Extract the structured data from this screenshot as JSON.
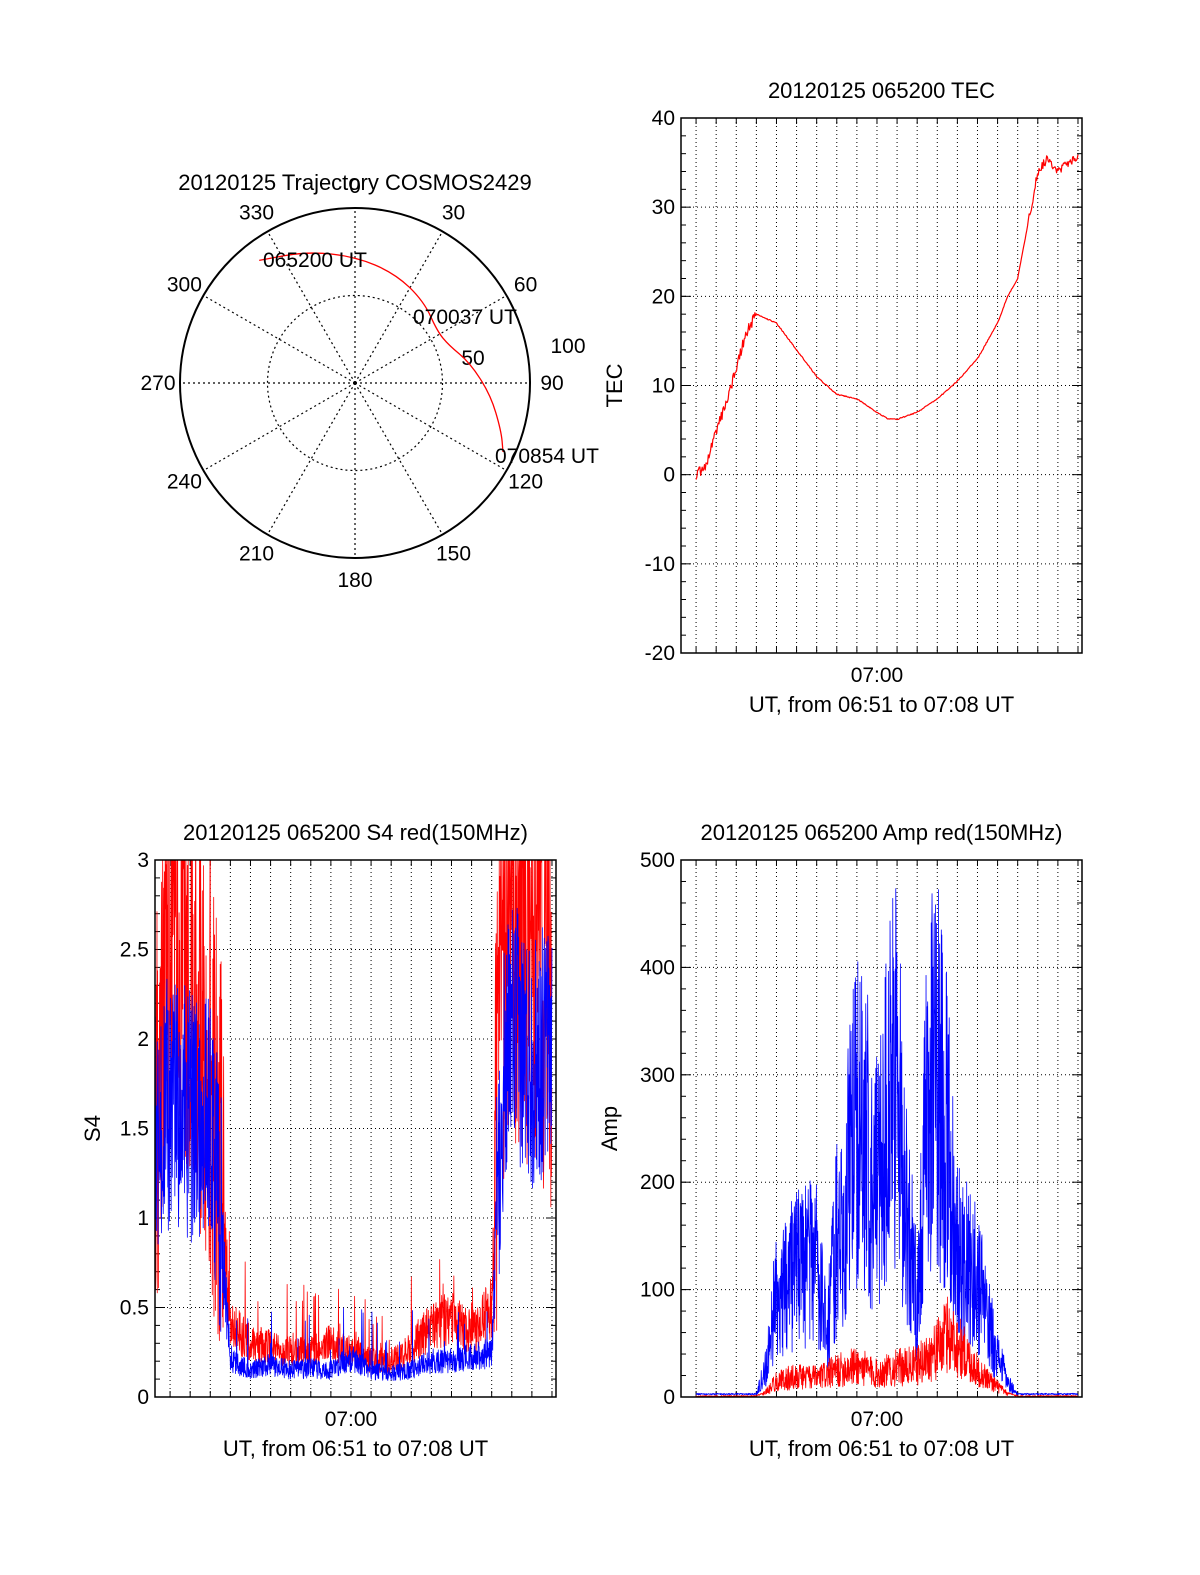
{
  "chart_data": [
    {
      "type": "polar",
      "title": "20120125 Trajectory COSMOS2429",
      "angle_labels": [
        "0",
        "30",
        "60",
        "90",
        "120",
        "150",
        "180",
        "210",
        "240",
        "270",
        "300",
        "330"
      ],
      "radial_labels": [
        "50",
        "100"
      ],
      "grid": true,
      "trajectory": {
        "color": "#ff0000",
        "points": [
          {
            "az": 322,
            "el": 10
          },
          {
            "az": 340,
            "el": 18
          },
          {
            "az": 0,
            "el": 25
          },
          {
            "az": 20,
            "el": 30
          },
          {
            "az": 40,
            "el": 35
          },
          {
            "az": 58,
            "el": 40
          },
          {
            "az": 68,
            "el": 38
          },
          {
            "az": 80,
            "el": 30
          },
          {
            "az": 95,
            "el": 20
          },
          {
            "az": 108,
            "el": 11
          },
          {
            "az": 115,
            "el": 6
          }
        ]
      },
      "annotations": [
        {
          "text": "065200 UT",
          "az": 322,
          "el": 10
        },
        {
          "text": "070037 UT",
          "az": 65,
          "el": 38
        },
        {
          "text": "070854 UT",
          "az": 115,
          "el": 6
        }
      ]
    },
    {
      "type": "line",
      "title": "20120125 065200 TEC",
      "xlabel": "UT, from 06:51 to 07:08 UT",
      "ylabel": "TEC",
      "xlim": [
        "06:50:15",
        "07:10:12"
      ],
      "ylim": [
        -20,
        40
      ],
      "yticks": [
        "-20",
        "-10",
        "0",
        "10",
        "20",
        "30",
        "40"
      ],
      "xtick_label": "07:00",
      "grid": true,
      "series": [
        {
          "color": "#ff0000",
          "x": [
            "06:51:00",
            "06:51:30",
            "06:52:00",
            "06:52:30",
            "06:53:00",
            "06:53:30",
            "06:54:00",
            "06:55:00",
            "06:56:00",
            "06:57:00",
            "06:58:00",
            "06:59:00",
            "07:00:00",
            "07:00:30",
            "07:01:00",
            "07:02:00",
            "07:03:00",
            "07:04:00",
            "07:05:00",
            "07:06:00",
            "07:06:30",
            "07:07:00",
            "07:07:30",
            "07:08:00",
            "07:08:30",
            "07:09:00",
            "07:09:30",
            "07:10:00"
          ],
          "y": [
            0,
            1,
            5,
            8,
            12,
            16,
            18,
            17,
            14,
            11,
            9,
            8.5,
            7,
            6.3,
            6.2,
            7,
            8.5,
            10.5,
            13,
            17,
            20,
            22,
            28,
            34,
            35.5,
            34,
            35,
            35.5
          ]
        }
      ]
    },
    {
      "type": "line",
      "title": "20120125 065200 S4 red(150MHz)",
      "xlabel": "UT, from 06:51 to 07:08 UT",
      "ylabel": "S4",
      "xlim": [
        "06:50:15",
        "07:10:12"
      ],
      "ylim": [
        0,
        3
      ],
      "yticks": [
        "0",
        "0.5",
        "1",
        "1.5",
        "2",
        "2.5",
        "3"
      ],
      "xtick_label": "07:00",
      "grid": true,
      "series": [
        {
          "color": "#ff0000",
          "x": [
            "06:50:15",
            "06:51:00",
            "06:52:00",
            "06:53:00",
            "06:53:30",
            "06:54:00",
            "06:55:00",
            "06:56:00",
            "06:57:00",
            "06:58:00",
            "06:59:00",
            "07:00:00",
            "07:01:00",
            "07:02:00",
            "07:03:00",
            "07:04:00",
            "07:05:00",
            "07:06:00",
            "07:07:00",
            "07:07:30",
            "07:08:00",
            "07:09:00",
            "07:10:00"
          ],
          "y": [
            1.5,
            2.6,
            2.3,
            1.8,
            1.2,
            0.4,
            0.3,
            0.28,
            0.25,
            0.25,
            0.3,
            0.25,
            0.2,
            0.2,
            0.28,
            0.4,
            0.45,
            0.35,
            0.5,
            2.2,
            2.6,
            2.4,
            2.2
          ]
        },
        {
          "color": "#0000ff",
          "x": [
            "06:50:15",
            "06:51:00",
            "06:52:00",
            "06:53:00",
            "06:53:30",
            "06:54:00",
            "06:55:00",
            "06:56:00",
            "06:57:00",
            "06:58:00",
            "06:59:00",
            "07:00:00",
            "07:01:00",
            "07:02:00",
            "07:03:00",
            "07:04:00",
            "07:05:00",
            "07:06:00",
            "07:07:00",
            "07:07:30",
            "07:08:00",
            "07:09:00",
            "07:10:00"
          ],
          "y": [
            1.4,
            1.6,
            1.5,
            1.5,
            1.0,
            0.2,
            0.15,
            0.18,
            0.15,
            0.16,
            0.15,
            0.22,
            0.15,
            0.13,
            0.15,
            0.2,
            0.2,
            0.22,
            0.25,
            1.6,
            2.0,
            1.8,
            1.9
          ]
        }
      ]
    },
    {
      "type": "line",
      "title": "20120125 065200 Amp red(150MHz)",
      "xlabel": "UT, from 06:51 to 07:08 UT",
      "ylabel": "Amp",
      "xlim": [
        "06:50:15",
        "07:10:12"
      ],
      "ylim": [
        0,
        500
      ],
      "yticks": [
        "0",
        "100",
        "200",
        "300",
        "400",
        "500"
      ],
      "xtick_label": "07:00",
      "grid": true,
      "series": [
        {
          "color": "#0000ff",
          "x": [
            "06:51:00",
            "06:54:00",
            "06:54:30",
            "06:55:00",
            "06:56:00",
            "06:57:00",
            "06:57:30",
            "06:58:00",
            "06:58:30",
            "06:59:00",
            "06:59:30",
            "07:00:00",
            "07:00:30",
            "07:01:00",
            "07:01:30",
            "07:02:00",
            "07:02:30",
            "07:03:00",
            "07:03:30",
            "07:04:00",
            "07:05:00",
            "07:06:00",
            "07:06:30",
            "07:07:00",
            "07:08:00",
            "07:09:00",
            "07:10:00"
          ],
          "y": [
            2,
            2,
            30,
            100,
            120,
            130,
            60,
            150,
            200,
            260,
            250,
            200,
            280,
            300,
            170,
            90,
            270,
            330,
            240,
            140,
            110,
            40,
            15,
            2,
            2,
            2,
            2
          ]
        },
        {
          "color": "#ff0000",
          "x": [
            "06:51:00",
            "06:54:00",
            "06:54:30",
            "06:55:00",
            "06:56:00",
            "06:57:00",
            "06:58:00",
            "06:59:00",
            "07:00:00",
            "07:01:00",
            "07:02:00",
            "07:03:00",
            "07:03:30",
            "07:04:00",
            "07:05:00",
            "07:06:00",
            "07:06:30",
            "07:07:00",
            "07:08:00",
            "07:10:00"
          ],
          "y": [
            0,
            0,
            5,
            15,
            20,
            18,
            25,
            30,
            22,
            28,
            30,
            45,
            60,
            50,
            25,
            10,
            3,
            0,
            0,
            0
          ]
        }
      ]
    }
  ]
}
